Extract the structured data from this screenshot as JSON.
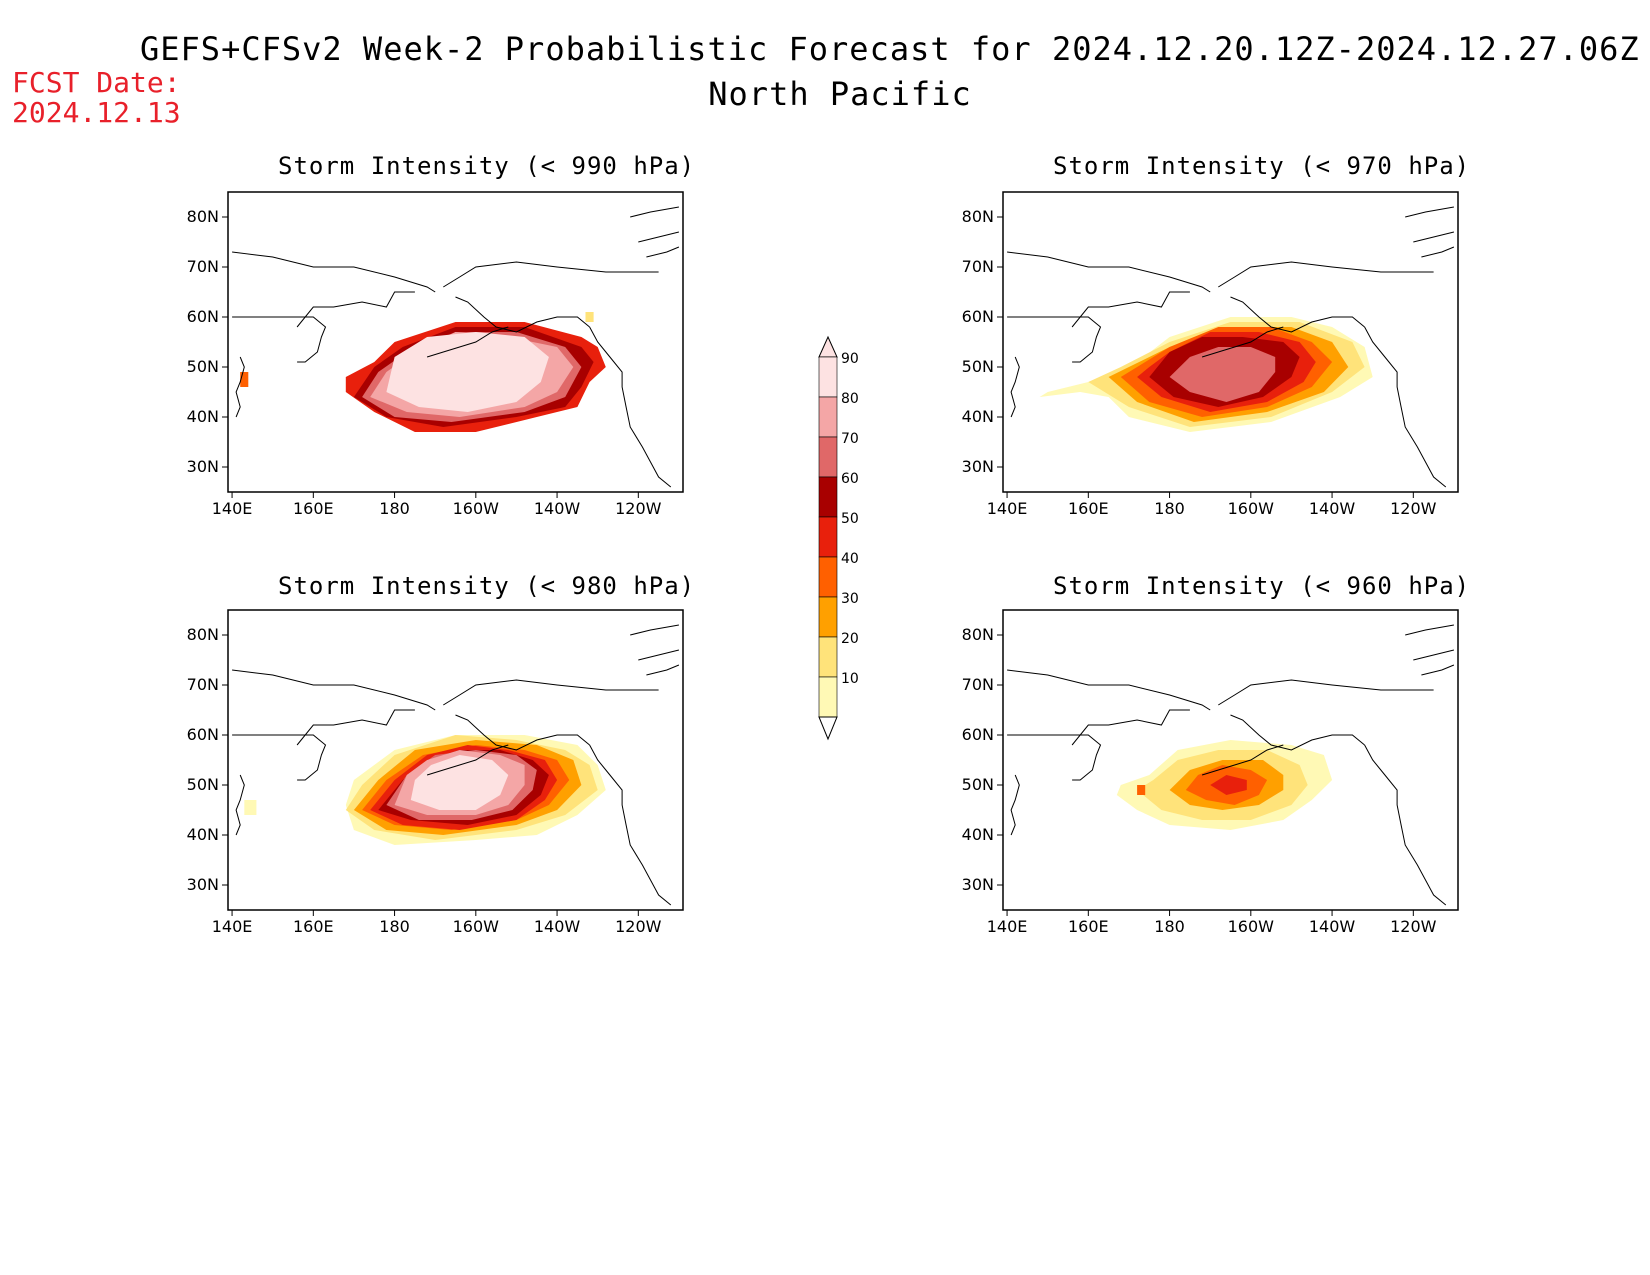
{
  "header": {
    "title": "GEFS+CFSv2 Week-2 Probabilistic Forecast for 2024.12.20.12Z-2024.12.27.06Z",
    "subtitle": "North Pacific",
    "fcst_label": "FCST Date:",
    "fcst_date": "2024.12.13"
  },
  "colors": {
    "10": "#fff9b5",
    "20": "#ffe37a",
    "30": "#ffa000",
    "40": "#ff6000",
    "50": "#e8200c",
    "60": "#a80000",
    "70": "#e06868",
    "80": "#f4a6a6",
    "90": "#fde2e2"
  },
  "colorbar": {
    "levels": [
      "10",
      "20",
      "30",
      "40",
      "50",
      "60",
      "70",
      "80",
      "90"
    ]
  },
  "axes": {
    "lon_ticks": [
      "140E",
      "160E",
      "180",
      "160W",
      "140W",
      "120W"
    ],
    "lat_ticks": [
      "80N",
      "70N",
      "60N",
      "50N",
      "40N",
      "30N"
    ]
  },
  "panels": [
    {
      "id": "p990",
      "title": "Storm Intensity (< 990 hPa)"
    },
    {
      "id": "p970",
      "title": "Storm Intensity (< 970 hPa)"
    },
    {
      "id": "p980",
      "title": "Storm Intensity (< 980 hPa)"
    },
    {
      "id": "p960",
      "title": "Storm Intensity (< 960 hPa)"
    }
  ]
}
